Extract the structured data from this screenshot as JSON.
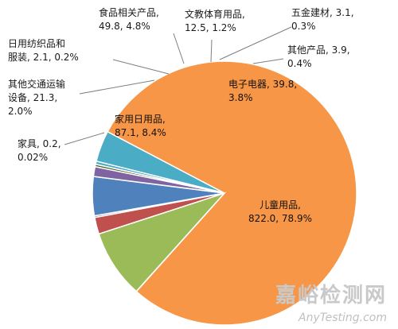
{
  "chart_data": {
    "type": "pie",
    "slices": [
      {
        "name": "电子电器",
        "value": 39.8,
        "percent": "3.8%",
        "color": "#4bacc6",
        "label_lines": [
          "电子电器, 39.8,",
          "3.8%"
        ]
      },
      {
        "name": "儿童用品",
        "value": 822.0,
        "percent": "78.9%",
        "color": "#f79646",
        "label_lines": [
          "儿童用品,",
          "822.0, 78.9%"
        ]
      },
      {
        "name": "家具",
        "value": 0.2,
        "percent": "0.02%",
        "color": "#1f3864",
        "label_lines": [
          "家具, 0.2,",
          "0.02%"
        ]
      },
      {
        "name": "家用日用品",
        "value": 87.1,
        "percent": "8.4%",
        "color": "#9bbb59",
        "label_lines": [
          "家用日用品,",
          "87.1, 8.4%"
        ]
      },
      {
        "name": "其他交通运输设备",
        "value": 21.3,
        "percent": "2.0%",
        "color": "#c0504d",
        "label_lines": [
          "其他交通运输",
          "设备, 21.3,",
          "2.0%"
        ]
      },
      {
        "name": "日用纺织品和服装",
        "value": 2.1,
        "percent": "0.2%",
        "color": "#8064a2",
        "label_lines": [
          "日用纺织品和",
          "服装, 2.1, 0.2%"
        ]
      },
      {
        "name": "食品相关产品",
        "value": 49.8,
        "percent": "4.8%",
        "color": "#4f81bd",
        "label_lines": [
          "食品相关产品,",
          "49.8, 4.8%"
        ]
      },
      {
        "name": "文教体育用品",
        "value": 12.5,
        "percent": "1.2%",
        "color": "#8064a2",
        "label_lines": [
          "文教体育用品,",
          "12.5, 1.2%"
        ]
      },
      {
        "name": "五金建材",
        "value": 3.1,
        "percent": "0.3%",
        "color": "#4f6228",
        "label_lines": [
          "五金建材, 3.1,",
          "0.3%"
        ]
      },
      {
        "name": "其他产品",
        "value": 3.9,
        "percent": "0.4%",
        "color": "#4bacc6",
        "label_lines": [
          "其他产品, 3.9,",
          "0.4%"
        ]
      }
    ],
    "legend": "none"
  },
  "watermark": {
    "brand": "嘉峪检测网",
    "site": "AnyTesting.com"
  }
}
